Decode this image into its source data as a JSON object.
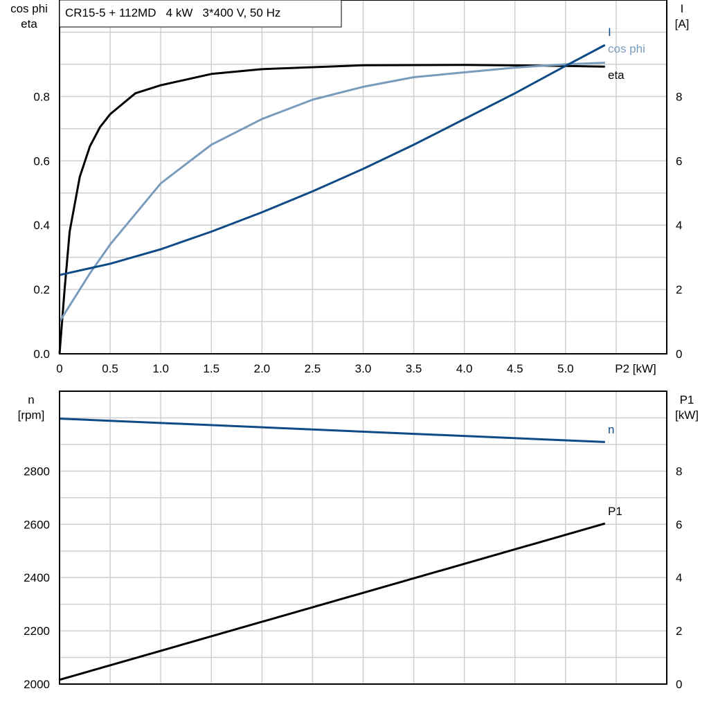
{
  "chart_data": [
    {
      "type": "line",
      "title": "CR15-5 + 112MD   4 kW   3*400 V, 50 Hz",
      "xlabel": "P2 [kW]",
      "ylabel_left": [
        "cos phi",
        "eta"
      ],
      "ylabel_right": [
        "I",
        "[A]"
      ],
      "xlim": [
        0,
        6
      ],
      "ylim_left": [
        0,
        1.1
      ],
      "ylim_right": [
        0,
        11
      ],
      "x_ticks": [
        "0",
        "0.5",
        "1.0",
        "1.5",
        "2.0",
        "2.5",
        "3.0",
        "3.5",
        "4.0",
        "4.5",
        "5.0"
      ],
      "y_ticks_left": [
        "0.0",
        "0.2",
        "0.4",
        "0.6",
        "0.8"
      ],
      "y_ticks_right": [
        "0",
        "2",
        "4",
        "6",
        "8"
      ],
      "grid": true,
      "series": [
        {
          "name": "eta",
          "axis": "left",
          "color": "#000000",
          "x": [
            0,
            0.05,
            0.1,
            0.2,
            0.3,
            0.4,
            0.5,
            0.75,
            1.0,
            1.5,
            2.0,
            3.0,
            4.0,
            5.0,
            5.39
          ],
          "y": [
            0,
            0.2,
            0.38,
            0.55,
            0.645,
            0.705,
            0.745,
            0.81,
            0.835,
            0.87,
            0.885,
            0.897,
            0.898,
            0.895,
            0.893
          ]
        },
        {
          "name": "cos phi",
          "axis": "left",
          "color": "#7a9cbc",
          "x": [
            0,
            0.3,
            0.5,
            1.0,
            1.5,
            2.0,
            2.5,
            3.0,
            3.5,
            4.0,
            4.5,
            5.0,
            5.39
          ],
          "y": [
            0.1,
            0.25,
            0.34,
            0.53,
            0.65,
            0.73,
            0.79,
            0.83,
            0.86,
            0.875,
            0.89,
            0.9,
            0.905
          ]
        },
        {
          "name": "I",
          "axis": "right",
          "color": "#0e4a86",
          "x": [
            0,
            0.5,
            1.0,
            1.5,
            2.0,
            2.5,
            3.0,
            3.5,
            4.0,
            4.5,
            5.0,
            5.39
          ],
          "y": [
            2.45,
            2.8,
            3.25,
            3.8,
            4.4,
            5.05,
            5.75,
            6.5,
            7.3,
            8.1,
            8.95,
            9.6
          ]
        }
      ]
    },
    {
      "type": "line",
      "ylabel_left": [
        "n",
        "[rpm]"
      ],
      "ylabel_right": [
        "P1",
        "[kW]"
      ],
      "xlim": [
        0,
        6
      ],
      "ylim_left": [
        2000,
        3100
      ],
      "ylim_right": [
        0,
        11
      ],
      "y_ticks_left": [
        "2000",
        "2200",
        "2400",
        "2600",
        "2800"
      ],
      "y_ticks_right": [
        "0",
        "2",
        "4",
        "6",
        "8"
      ],
      "grid": true,
      "series": [
        {
          "name": "n",
          "axis": "left",
          "color": "#0e4a86",
          "x": [
            0,
            5.39
          ],
          "y": [
            2997,
            2909
          ]
        },
        {
          "name": "P1",
          "axis": "right",
          "color": "#000000",
          "x": [
            0,
            5.39
          ],
          "y": [
            0.16,
            6.03
          ]
        }
      ]
    }
  ]
}
